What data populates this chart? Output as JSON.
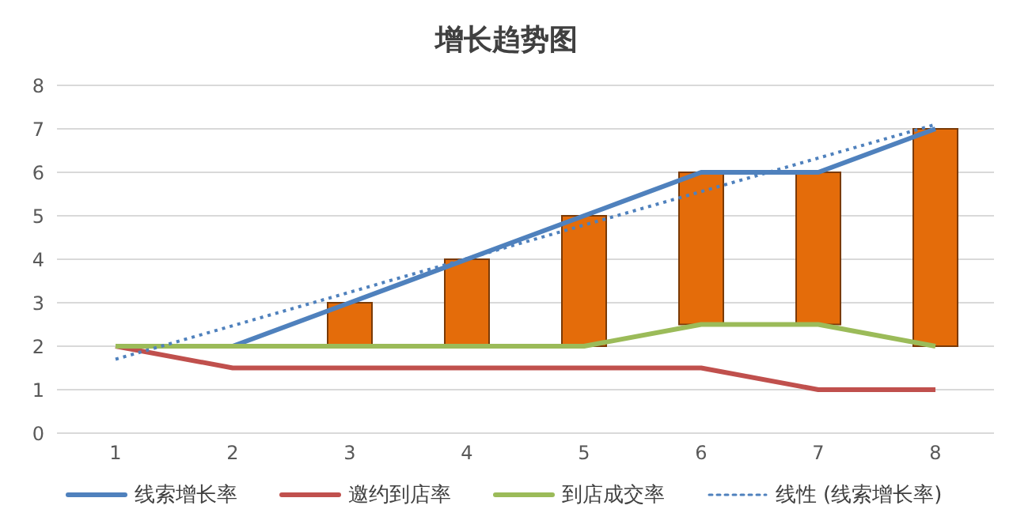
{
  "chart_data": {
    "type": "line",
    "title": "增长趋势图",
    "x": [
      1,
      2,
      3,
      4,
      5,
      6,
      7,
      8
    ],
    "xlim": [
      0.5,
      8.5
    ],
    "xticks": [
      1,
      2,
      3,
      4,
      5,
      6,
      7,
      8
    ],
    "ylim": [
      0,
      8
    ],
    "yticks": [
      0,
      1,
      2,
      3,
      4,
      5,
      6,
      7,
      8
    ],
    "grid": "y",
    "legend": "bottom",
    "marker": "none",
    "series": [
      {
        "name": "线索增长率",
        "color": "#4f81bd",
        "values": [
          2,
          2,
          3,
          4,
          5,
          6,
          6,
          7
        ]
      },
      {
        "name": "邀约到店率",
        "color": "#c0504d",
        "values": [
          2,
          1.5,
          1.5,
          1.5,
          1.5,
          1.5,
          1,
          1
        ]
      },
      {
        "name": "到店成交率",
        "color": "#9bbb59",
        "values": [
          2,
          2,
          2,
          2,
          2,
          2.5,
          2.5,
          2
        ]
      },
      {
        "name": "线性 (线索增长率)",
        "color": "#4f81bd",
        "line_style": "dotted",
        "x": [
          1,
          8
        ],
        "values": [
          1.7,
          7.1
        ]
      },
      {
        "type": "bar",
        "color": "#e46c0a",
        "base": [
          null,
          null,
          2,
          2,
          2,
          2.5,
          2.5,
          2
        ],
        "values": [
          null,
          null,
          1,
          2,
          3,
          3.5,
          3.5,
          5
        ]
      }
    ]
  }
}
